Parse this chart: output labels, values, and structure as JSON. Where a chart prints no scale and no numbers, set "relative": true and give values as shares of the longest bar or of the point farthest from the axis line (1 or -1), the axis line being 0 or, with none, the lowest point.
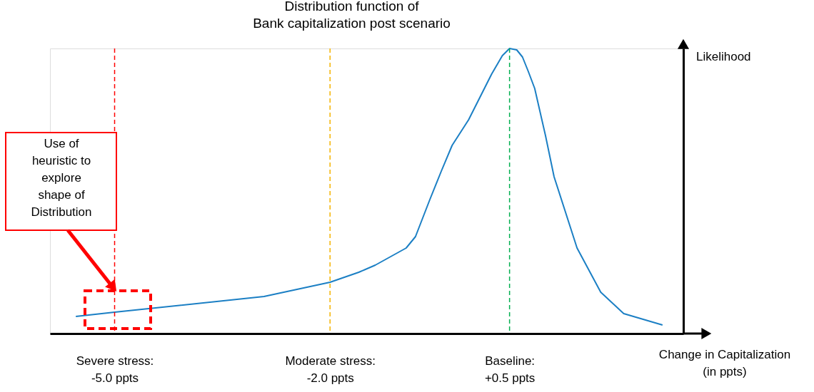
{
  "chart_data": {
    "type": "line",
    "relative": true,
    "title": "Distribution function of\nBank capitalization post scenario",
    "xlabel": "Change in Capitalization\n(in ppts)",
    "ylabel": "Likelihood",
    "xlim": [
      -5.9,
      2.92
    ],
    "tick_labels": "x",
    "marker": "none",
    "line_style": "solid",
    "xticks": [
      {
        "value": -5.0,
        "label": "Severe stress:\n-5.0 ppts"
      },
      {
        "value": -2.0,
        "label": "Moderate stress:\n-2.0 ppts"
      },
      {
        "value": 0.5,
        "label": "Baseline:\n+0.5 ppts"
      }
    ],
    "x": [
      -5.54,
      -5.0,
      -2.92,
      -2.0,
      -1.6,
      -1.37,
      -0.94,
      -0.81,
      -0.61,
      -0.45,
      -0.3,
      -0.07,
      0.25,
      0.4,
      0.5,
      0.6,
      0.68,
      0.76,
      0.85,
      1.0,
      1.12,
      1.44,
      1.77,
      2.09,
      2.63
    ],
    "series": [
      {
        "color": "#1b7fc4",
        "values": [
          0.06,
          0.075,
          0.13,
          0.18,
          0.215,
          0.24,
          0.3,
          0.34,
          0.47,
          0.57,
          0.66,
          0.75,
          0.91,
          0.975,
          1.0,
          0.995,
          0.97,
          0.92,
          0.86,
          0.695,
          0.55,
          0.3,
          0.145,
          0.07,
          0.03
        ]
      }
    ],
    "ref_lines": [
      {
        "axis": "x",
        "value": -5.0,
        "color": "#ff0000",
        "line_style": "dashed"
      },
      {
        "axis": "x",
        "value": -2.0,
        "color": "#f5b400",
        "line_style": "dashed"
      },
      {
        "axis": "x",
        "value": 0.5,
        "color": "#00b050",
        "line_style": "dashed"
      }
    ],
    "annotations": [
      "Use of\nheuristic to\nexplore\nshape of\nDistribution"
    ]
  }
}
